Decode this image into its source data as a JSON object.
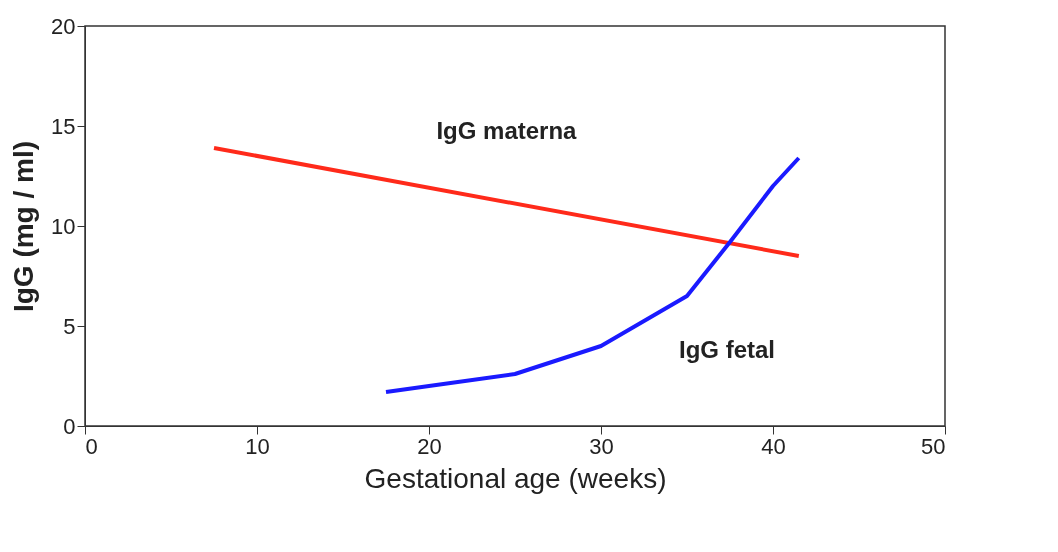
{
  "chart_data": {
    "type": "line",
    "xlabel": "Gestational age  (weeks)",
    "ylabel": "IgG  (mg / ml)",
    "xlim": [
      0,
      50
    ],
    "ylim": [
      0,
      20
    ],
    "xticks": [
      0,
      10,
      20,
      30,
      40,
      50
    ],
    "yticks": [
      0,
      5,
      10,
      15,
      20
    ],
    "grid": false,
    "legend": false,
    "marker": "none",
    "line_style": "solid",
    "series": [
      {
        "name": "IgG materna",
        "color": "#ff2a1a",
        "x": [
          7.5,
          41.5
        ],
        "values": [
          13.9,
          8.5
        ]
      },
      {
        "name": "IgG fetal",
        "color": "#1a1aff",
        "x": [
          17.5,
          20,
          25,
          30,
          35,
          37.5,
          40,
          41.5
        ],
        "values": [
          1.7,
          2.0,
          2.6,
          4.0,
          6.5,
          9.2,
          12.0,
          13.4
        ]
      }
    ]
  }
}
